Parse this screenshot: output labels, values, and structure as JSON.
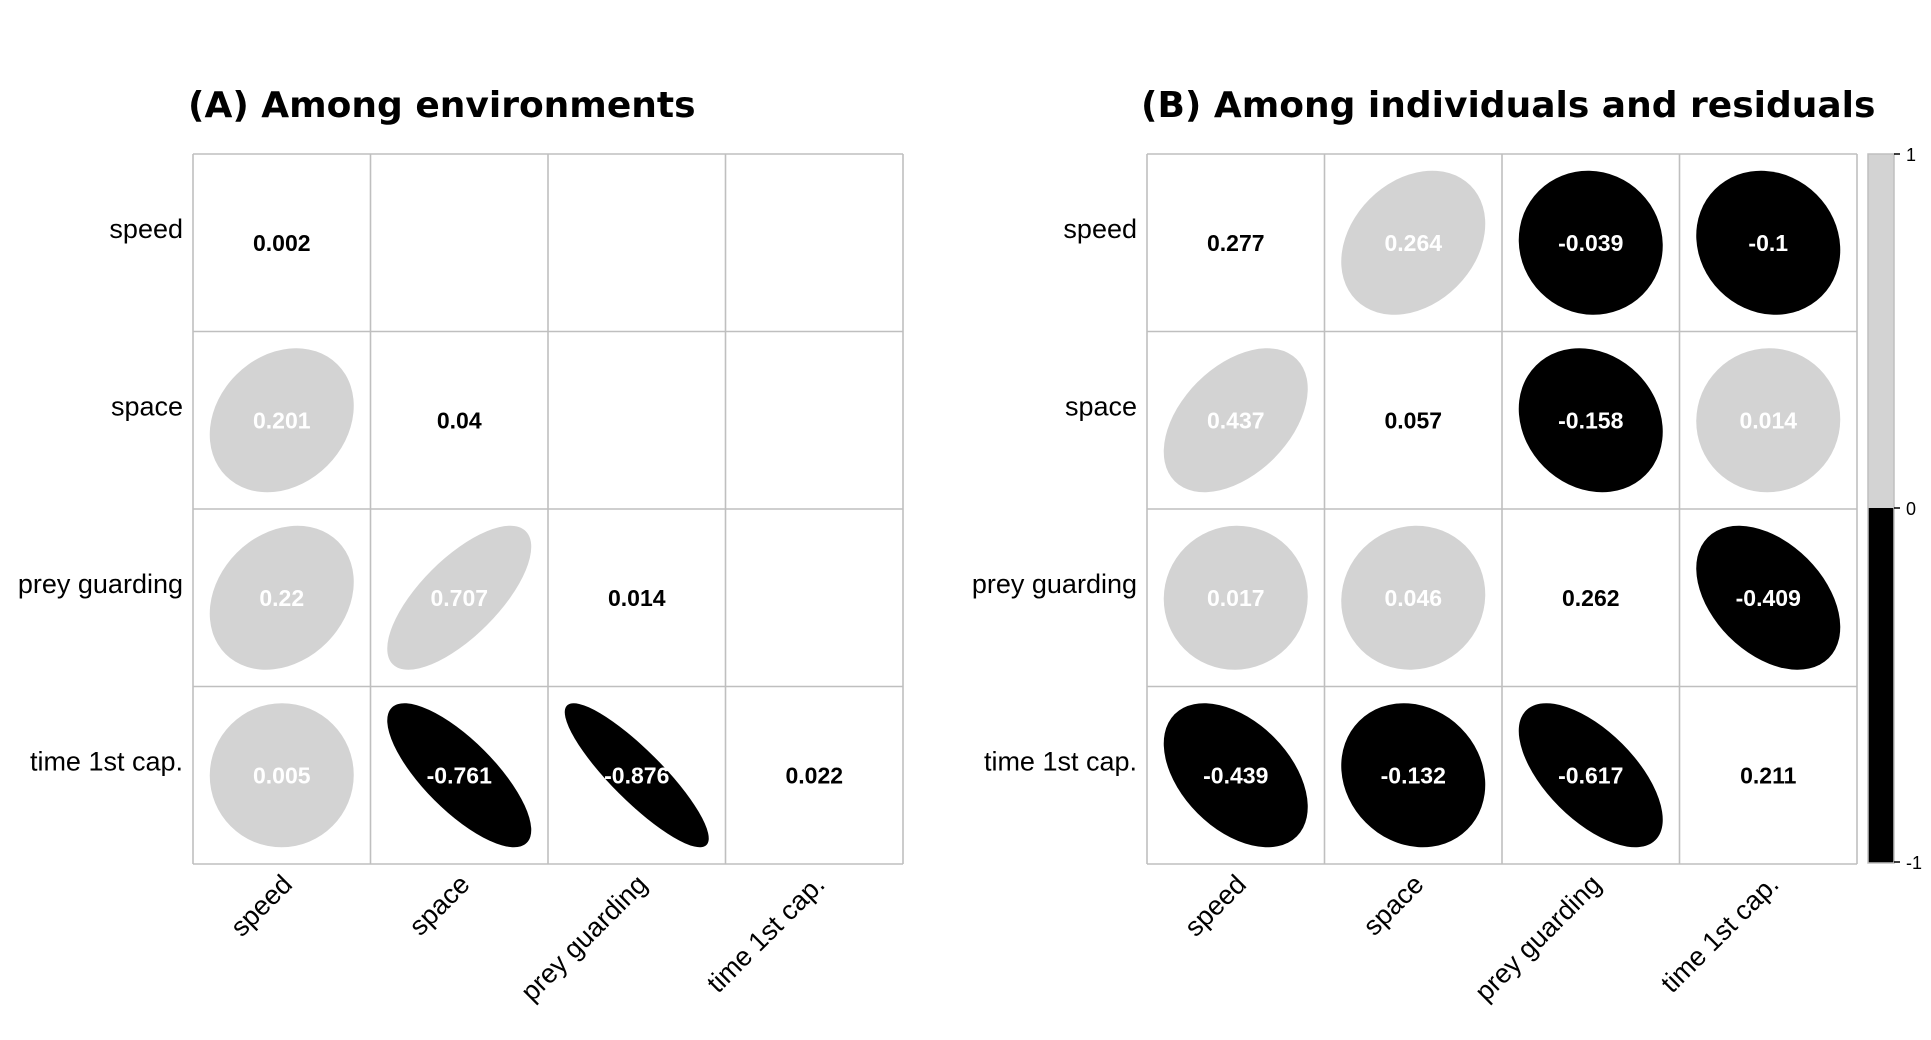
{
  "colors": {
    "positive": "#d3d3d3",
    "negative": "#000000",
    "grid": "#bfbfbf",
    "diag_text": "#000000",
    "text_on_positive": "#ffffff",
    "text_on_negative": "#ffffff"
  },
  "chart_data": [
    {
      "type": "heatmap",
      "subtype": "correlation-ellipse-matrix",
      "title": "(A) Among environments",
      "variables": [
        "speed",
        "space",
        "prey guarding",
        "time 1st cap."
      ],
      "layout": "lower-triangle",
      "cells": [
        {
          "row": 0,
          "col": 0,
          "value": 0.002,
          "diagonal": true
        },
        {
          "row": 1,
          "col": 0,
          "value": 0.201
        },
        {
          "row": 1,
          "col": 1,
          "value": 0.04,
          "diagonal": true
        },
        {
          "row": 2,
          "col": 0,
          "value": 0.22
        },
        {
          "row": 2,
          "col": 1,
          "value": 0.707
        },
        {
          "row": 2,
          "col": 2,
          "value": 0.014,
          "diagonal": true
        },
        {
          "row": 3,
          "col": 0,
          "value": 0.005
        },
        {
          "row": 3,
          "col": 1,
          "value": -0.761
        },
        {
          "row": 3,
          "col": 2,
          "value": -0.876
        },
        {
          "row": 3,
          "col": 3,
          "value": 0.022,
          "diagonal": true
        }
      ]
    },
    {
      "type": "heatmap",
      "subtype": "correlation-ellipse-matrix",
      "title": "(B) Among individuals and residuals",
      "variables": [
        "speed",
        "space",
        "prey guarding",
        "time 1st cap."
      ],
      "layout": "full",
      "cells": [
        {
          "row": 0,
          "col": 0,
          "value": 0.277,
          "diagonal": true
        },
        {
          "row": 0,
          "col": 1,
          "value": 0.264
        },
        {
          "row": 0,
          "col": 2,
          "value": -0.039
        },
        {
          "row": 0,
          "col": 3,
          "value": -0.1
        },
        {
          "row": 1,
          "col": 0,
          "value": 0.437
        },
        {
          "row": 1,
          "col": 1,
          "value": 0.057,
          "diagonal": true
        },
        {
          "row": 1,
          "col": 2,
          "value": -0.158
        },
        {
          "row": 1,
          "col": 3,
          "value": 0.014
        },
        {
          "row": 2,
          "col": 0,
          "value": 0.017
        },
        {
          "row": 2,
          "col": 1,
          "value": 0.046
        },
        {
          "row": 2,
          "col": 2,
          "value": 0.262,
          "diagonal": true
        },
        {
          "row": 2,
          "col": 3,
          "value": -0.409
        },
        {
          "row": 3,
          "col": 0,
          "value": -0.439
        },
        {
          "row": 3,
          "col": 1,
          "value": -0.132
        },
        {
          "row": 3,
          "col": 2,
          "value": -0.617
        },
        {
          "row": 3,
          "col": 3,
          "value": 0.211,
          "diagonal": true
        }
      ]
    }
  ],
  "legend": {
    "ticks": [
      "1",
      "0",
      "-1"
    ],
    "range": [
      -1,
      1
    ]
  }
}
